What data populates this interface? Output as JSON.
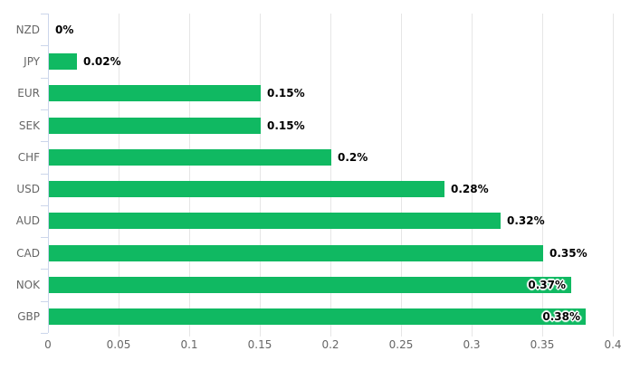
{
  "chart_data": {
    "type": "bar",
    "orientation": "horizontal",
    "title": "",
    "xlabel": "",
    "ylabel": "",
    "categories": [
      "NZD",
      "JPY",
      "EUR",
      "SEK",
      "CHF",
      "USD",
      "AUD",
      "CAD",
      "NOK",
      "GBP"
    ],
    "series": [
      {
        "name": "performance-percent",
        "values": [
          0,
          0.02,
          0.15,
          0.15,
          0.2,
          0.28,
          0.32,
          0.35,
          0.37,
          0.38
        ]
      }
    ],
    "value_labels": [
      "0%",
      "0.02%",
      "0.15%",
      "0.15%",
      "0.2%",
      "0.28%",
      "0.32%",
      "0.35%",
      "0.37%",
      "0.38%"
    ],
    "xlim": [
      0,
      0.4
    ],
    "x_ticks": [
      {
        "value": 0,
        "label": "0"
      },
      {
        "value": 0.05,
        "label": "0.05"
      },
      {
        "value": 0.1,
        "label": "0.1"
      },
      {
        "value": 0.15,
        "label": "0.15"
      },
      {
        "value": 0.2,
        "label": "0.2"
      },
      {
        "value": 0.25,
        "label": "0.25"
      },
      {
        "value": 0.3,
        "label": "0.3"
      },
      {
        "value": 0.35,
        "label": "0.35"
      },
      {
        "value": 0.4,
        "label": "0.4"
      },
      {
        "value": 0.4,
        "label": "0.4"
      }
    ],
    "grid": true,
    "legend": false,
    "colors": {
      "bar": "#10b962",
      "gridline": "#e6e6e6",
      "axis": "#ccd6eb",
      "category_label": "#666666",
      "tick_label": "#666666",
      "value_label": "#000000",
      "background": "#ffffff"
    }
  }
}
